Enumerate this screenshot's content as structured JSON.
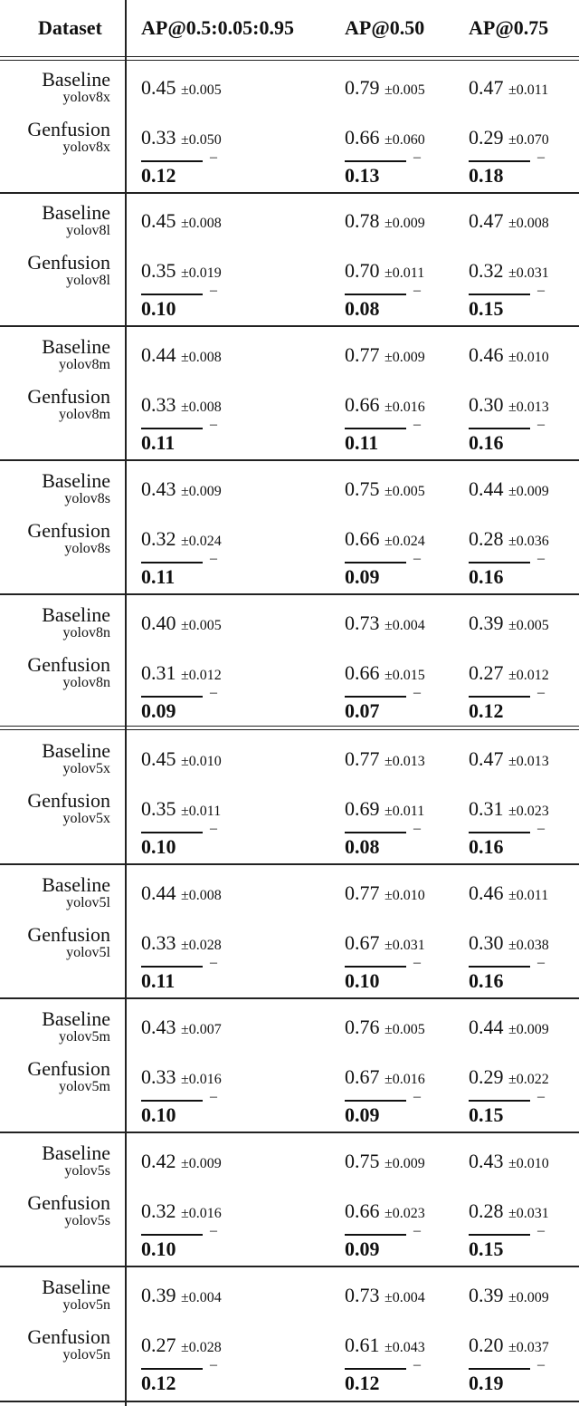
{
  "headers": [
    "Dataset",
    "AP@0.5:0.05:0.95",
    "AP@0.50",
    "AP@0.75"
  ],
  "labels": {
    "baseline": "Baseline",
    "genfusion": "Genfusion",
    "diff_mark": "–"
  },
  "groups": [
    {
      "model": "yolov8x",
      "baseline": [
        [
          "0.45",
          "±0.005"
        ],
        [
          "0.79",
          "±0.005"
        ],
        [
          "0.47",
          "±0.011"
        ]
      ],
      "genfusion": [
        [
          "0.33",
          "±0.050"
        ],
        [
          "0.66",
          "±0.060"
        ],
        [
          "0.29",
          "±0.070"
        ]
      ],
      "diff": [
        "0.12",
        "0.13",
        "0.18"
      ]
    },
    {
      "model": "yolov8l",
      "baseline": [
        [
          "0.45",
          "±0.008"
        ],
        [
          "0.78",
          "±0.009"
        ],
        [
          "0.47",
          "±0.008"
        ]
      ],
      "genfusion": [
        [
          "0.35",
          "±0.019"
        ],
        [
          "0.70",
          "±0.011"
        ],
        [
          "0.32",
          "±0.031"
        ]
      ],
      "diff": [
        "0.10",
        "0.08",
        "0.15"
      ]
    },
    {
      "model": "yolov8m",
      "baseline": [
        [
          "0.44",
          "±0.008"
        ],
        [
          "0.77",
          "±0.009"
        ],
        [
          "0.46",
          "±0.010"
        ]
      ],
      "genfusion": [
        [
          "0.33",
          "±0.008"
        ],
        [
          "0.66",
          "±0.016"
        ],
        [
          "0.30",
          "±0.013"
        ]
      ],
      "diff": [
        "0.11",
        "0.11",
        "0.16"
      ]
    },
    {
      "model": "yolov8s",
      "baseline": [
        [
          "0.43",
          "±0.009"
        ],
        [
          "0.75",
          "±0.005"
        ],
        [
          "0.44",
          "±0.009"
        ]
      ],
      "genfusion": [
        [
          "0.32",
          "±0.024"
        ],
        [
          "0.66",
          "±0.024"
        ],
        [
          "0.28",
          "±0.036"
        ]
      ],
      "diff": [
        "0.11",
        "0.09",
        "0.16"
      ]
    },
    {
      "model": "yolov8n",
      "baseline": [
        [
          "0.40",
          "±0.005"
        ],
        [
          "0.73",
          "±0.004"
        ],
        [
          "0.39",
          "±0.005"
        ]
      ],
      "genfusion": [
        [
          "0.31",
          "±0.012"
        ],
        [
          "0.66",
          "±0.015"
        ],
        [
          "0.27",
          "±0.012"
        ]
      ],
      "diff": [
        "0.09",
        "0.07",
        "0.12"
      ]
    },
    {
      "model": "yolov5x",
      "baseline": [
        [
          "0.45",
          "±0.010"
        ],
        [
          "0.77",
          "±0.013"
        ],
        [
          "0.47",
          "±0.013"
        ]
      ],
      "genfusion": [
        [
          "0.35",
          "±0.011"
        ],
        [
          "0.69",
          "±0.011"
        ],
        [
          "0.31",
          "±0.023"
        ]
      ],
      "diff": [
        "0.10",
        "0.08",
        "0.16"
      ]
    },
    {
      "model": "yolov5l",
      "baseline": [
        [
          "0.44",
          "±0.008"
        ],
        [
          "0.77",
          "±0.010"
        ],
        [
          "0.46",
          "±0.011"
        ]
      ],
      "genfusion": [
        [
          "0.33",
          "±0.028"
        ],
        [
          "0.67",
          "±0.031"
        ],
        [
          "0.30",
          "±0.038"
        ]
      ],
      "diff": [
        "0.11",
        "0.10",
        "0.16"
      ]
    },
    {
      "model": "yolov5m",
      "baseline": [
        [
          "0.43",
          "±0.007"
        ],
        [
          "0.76",
          "±0.005"
        ],
        [
          "0.44",
          "±0.009"
        ]
      ],
      "genfusion": [
        [
          "0.33",
          "±0.016"
        ],
        [
          "0.67",
          "±0.016"
        ],
        [
          "0.29",
          "±0.022"
        ]
      ],
      "diff": [
        "0.10",
        "0.09",
        "0.15"
      ]
    },
    {
      "model": "yolov5s",
      "baseline": [
        [
          "0.42",
          "±0.009"
        ],
        [
          "0.75",
          "±0.009"
        ],
        [
          "0.43",
          "±0.010"
        ]
      ],
      "genfusion": [
        [
          "0.32",
          "±0.016"
        ],
        [
          "0.66",
          "±0.023"
        ],
        [
          "0.28",
          "±0.031"
        ]
      ],
      "diff": [
        "0.10",
        "0.09",
        "0.15"
      ]
    },
    {
      "model": "yolov5n",
      "baseline": [
        [
          "0.39",
          "±0.004"
        ],
        [
          "0.73",
          "±0.004"
        ],
        [
          "0.39",
          "±0.009"
        ]
      ],
      "genfusion": [
        [
          "0.27",
          "±0.028"
        ],
        [
          "0.61",
          "±0.043"
        ],
        [
          "0.20",
          "±0.037"
        ]
      ],
      "diff": [
        "0.12",
        "0.12",
        "0.19"
      ]
    }
  ]
}
